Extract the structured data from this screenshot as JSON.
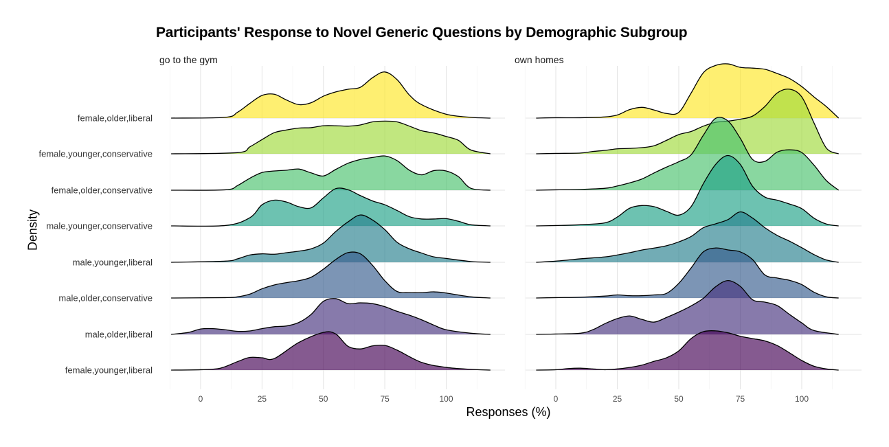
{
  "chart_data": {
    "type": "ridgeline",
    "title": "Participants' Response to Novel Generic Questions by Demographic Subgroup",
    "xlabel": "Responses (%)",
    "ylabel": "Density",
    "xlim": [
      -12,
      118
    ],
    "x_ticks": [
      0,
      25,
      50,
      75,
      100
    ],
    "grid": true,
    "categories": [
      "female,younger,liberal",
      "male,older,liberal",
      "male,older,conservative",
      "male,younger,liberal",
      "male,younger,conservative",
      "female,older,conservative",
      "female,younger,conservative",
      "female,older,liberal"
    ],
    "colors": [
      "#440154",
      "#46337E",
      "#365C8D",
      "#277F8E",
      "#1FA187",
      "#4AC16D",
      "#9FDA3A",
      "#FDE725"
    ],
    "fill_opacity": 0.65,
    "panels": [
      {
        "facet": "go to the gym",
        "series": [
          {
            "name": "female,younger,liberal",
            "x": [
              -12,
              0,
              8,
              15,
              20,
              25,
              30,
              40,
              50,
              55,
              60,
              65,
              70,
              75,
              80,
              90,
              100,
              110,
              118
            ],
            "density": [
              0,
              0.01,
              0.05,
              0.22,
              0.33,
              0.32,
              0.3,
              0.72,
              0.98,
              0.94,
              0.62,
              0.55,
              0.63,
              0.64,
              0.52,
              0.2,
              0.07,
              0.02,
              0
            ]
          },
          {
            "name": "male,older,liberal",
            "x": [
              -12,
              -5,
              0,
              5,
              10,
              15,
              20,
              25,
              30,
              35,
              40,
              45,
              50,
              55,
              60,
              65,
              70,
              75,
              80,
              85,
              90,
              95,
              100,
              110,
              118
            ],
            "density": [
              0,
              0.05,
              0.14,
              0.15,
              0.12,
              0.08,
              0.09,
              0.15,
              0.2,
              0.22,
              0.31,
              0.52,
              0.86,
              0.93,
              0.8,
              0.82,
              0.8,
              0.72,
              0.6,
              0.5,
              0.38,
              0.24,
              0.12,
              0.03,
              0
            ]
          },
          {
            "name": "male,older,conservative",
            "x": [
              -12,
              10,
              15,
              20,
              25,
              30,
              35,
              40,
              45,
              50,
              55,
              60,
              65,
              70,
              75,
              80,
              85,
              90,
              95,
              100,
              110,
              118
            ],
            "density": [
              0,
              0.01,
              0.03,
              0.1,
              0.24,
              0.34,
              0.4,
              0.45,
              0.54,
              0.75,
              1.0,
              1.18,
              1.15,
              0.85,
              0.45,
              0.17,
              0.14,
              0.14,
              0.16,
              0.13,
              0.03,
              0
            ]
          },
          {
            "name": "male,younger,liberal",
            "x": [
              -12,
              10,
              15,
              20,
              25,
              30,
              35,
              40,
              45,
              50,
              55,
              60,
              65,
              70,
              75,
              80,
              85,
              90,
              95,
              100,
              110,
              118
            ],
            "density": [
              0,
              0.03,
              0.09,
              0.19,
              0.22,
              0.21,
              0.25,
              0.29,
              0.35,
              0.5,
              0.8,
              1.05,
              1.23,
              1.1,
              0.85,
              0.52,
              0.35,
              0.24,
              0.14,
              0.1,
              0.02,
              0
            ]
          },
          {
            "name": "male,younger,conservative",
            "x": [
              -12,
              10,
              20,
              25,
              30,
              35,
              40,
              45,
              50,
              55,
              60,
              65,
              70,
              75,
              80,
              85,
              90,
              95,
              100,
              105,
              110,
              118
            ],
            "density": [
              0,
              0.01,
              0.21,
              0.55,
              0.67,
              0.62,
              0.5,
              0.47,
              0.73,
              0.97,
              0.94,
              0.79,
              0.65,
              0.55,
              0.4,
              0.24,
              0.18,
              0.18,
              0.19,
              0.12,
              0.03,
              0
            ]
          },
          {
            "name": "female,older,conservative",
            "x": [
              -12,
              10,
              15,
              20,
              25,
              30,
              35,
              40,
              45,
              50,
              55,
              60,
              65,
              70,
              75,
              80,
              85,
              90,
              95,
              100,
              105,
              110,
              118
            ],
            "density": [
              0,
              0.01,
              0.12,
              0.31,
              0.46,
              0.5,
              0.52,
              0.55,
              0.45,
              0.37,
              0.54,
              0.7,
              0.8,
              0.85,
              0.89,
              0.77,
              0.52,
              0.4,
              0.51,
              0.5,
              0.35,
              0.05,
              0
            ]
          },
          {
            "name": "female,younger,conservative",
            "x": [
              -12,
              15,
              20,
              25,
              30,
              35,
              40,
              45,
              50,
              55,
              60,
              65,
              70,
              75,
              80,
              85,
              90,
              95,
              100,
              105,
              110,
              118
            ],
            "density": [
              0,
              0.03,
              0.18,
              0.37,
              0.55,
              0.62,
              0.67,
              0.68,
              0.73,
              0.73,
              0.72,
              0.75,
              0.83,
              0.85,
              0.83,
              0.72,
              0.6,
              0.54,
              0.45,
              0.35,
              0.1,
              0
            ]
          },
          {
            "name": "female,older,liberal",
            "x": [
              -12,
              10,
              15,
              20,
              25,
              30,
              35,
              40,
              45,
              50,
              55,
              60,
              65,
              70,
              75,
              80,
              85,
              90,
              100,
              110,
              118
            ],
            "density": [
              0,
              0.02,
              0.15,
              0.38,
              0.59,
              0.62,
              0.47,
              0.35,
              0.4,
              0.57,
              0.68,
              0.75,
              0.8,
              1.05,
              1.2,
              1.0,
              0.6,
              0.35,
              0.1,
              0.02,
              0
            ]
          }
        ]
      },
      {
        "facet": "own homes",
        "series": [
          {
            "name": "female,younger,liberal",
            "x": [
              -8,
              0,
              5,
              10,
              15,
              20,
              25,
              30,
              35,
              40,
              45,
              50,
              55,
              60,
              65,
              70,
              75,
              80,
              85,
              90,
              95,
              100,
              105,
              110,
              115
            ],
            "density": [
              0,
              0.01,
              0.04,
              0.05,
              0.03,
              0.01,
              0.03,
              0.07,
              0.13,
              0.23,
              0.32,
              0.5,
              0.82,
              1.0,
              1.02,
              0.97,
              0.88,
              0.82,
              0.76,
              0.64,
              0.45,
              0.25,
              0.1,
              0.03,
              0
            ]
          },
          {
            "name": "male,older,liberal",
            "x": [
              -8,
              0,
              10,
              15,
              20,
              25,
              30,
              35,
              40,
              45,
              50,
              55,
              60,
              65,
              70,
              75,
              80,
              85,
              90,
              95,
              100,
              105,
              115
            ],
            "density": [
              0,
              0.01,
              0.03,
              0.12,
              0.28,
              0.41,
              0.48,
              0.39,
              0.32,
              0.44,
              0.58,
              0.74,
              0.94,
              1.24,
              1.4,
              1.25,
              0.9,
              0.84,
              0.75,
              0.52,
              0.3,
              0.1,
              0
            ]
          },
          {
            "name": "male,older,conservative",
            "x": [
              -8,
              0,
              10,
              20,
              25,
              30,
              35,
              40,
              45,
              50,
              55,
              60,
              65,
              70,
              75,
              80,
              85,
              90,
              95,
              100,
              105,
              110,
              115
            ],
            "density": [
              0,
              0.01,
              0.02,
              0.05,
              0.08,
              0.06,
              0.06,
              0.08,
              0.12,
              0.38,
              0.78,
              1.2,
              1.3,
              1.25,
              1.2,
              1.0,
              0.6,
              0.52,
              0.46,
              0.35,
              0.15,
              0.03,
              0
            ]
          },
          {
            "name": "male,younger,liberal",
            "x": [
              -8,
              0,
              10,
              20,
              25,
              30,
              35,
              40,
              45,
              50,
              55,
              60,
              65,
              70,
              75,
              80,
              85,
              90,
              95,
              100,
              105,
              110,
              115
            ],
            "density": [
              0,
              0.03,
              0.09,
              0.14,
              0.19,
              0.25,
              0.32,
              0.37,
              0.43,
              0.53,
              0.67,
              0.9,
              1.0,
              1.11,
              1.31,
              1.15,
              0.9,
              0.7,
              0.55,
              0.38,
              0.2,
              0.06,
              0
            ]
          },
          {
            "name": "male,younger,conservative",
            "x": [
              -8,
              0,
              10,
              20,
              25,
              30,
              35,
              40,
              45,
              50,
              55,
              60,
              65,
              70,
              75,
              80,
              85,
              90,
              95,
              100,
              105,
              110,
              115
            ],
            "density": [
              0,
              0.01,
              0.03,
              0.08,
              0.23,
              0.46,
              0.53,
              0.5,
              0.38,
              0.28,
              0.5,
              1.1,
              1.6,
              1.83,
              1.6,
              1.03,
              0.75,
              0.67,
              0.57,
              0.45,
              0.2,
              0.05,
              0
            ]
          },
          {
            "name": "female,older,conservative",
            "x": [
              -8,
              0,
              10,
              20,
              25,
              30,
              35,
              40,
              45,
              50,
              55,
              60,
              65,
              70,
              75,
              80,
              85,
              90,
              95,
              100,
              105,
              110,
              115
            ],
            "density": [
              0,
              0.01,
              0.02,
              0.05,
              0.11,
              0.19,
              0.29,
              0.45,
              0.6,
              0.74,
              0.92,
              1.43,
              1.87,
              1.8,
              1.35,
              0.8,
              0.75,
              0.99,
              1.05,
              0.98,
              0.65,
              0.25,
              0
            ]
          },
          {
            "name": "female,younger,conservative",
            "x": [
              -8,
              0,
              10,
              15,
              20,
              25,
              30,
              35,
              40,
              45,
              50,
              55,
              60,
              65,
              70,
              75,
              80,
              85,
              90,
              95,
              100,
              105,
              110,
              115
            ],
            "density": [
              0,
              0.01,
              0.02,
              0.06,
              0.09,
              0.13,
              0.14,
              0.16,
              0.21,
              0.35,
              0.5,
              0.58,
              0.72,
              0.82,
              0.85,
              0.9,
              0.98,
              1.23,
              1.58,
              1.68,
              1.48,
              0.8,
              0.15,
              0
            ]
          },
          {
            "name": "female,older,liberal",
            "x": [
              -8,
              0,
              10,
              20,
              25,
              30,
              35,
              40,
              45,
              50,
              55,
              60,
              65,
              70,
              75,
              80,
              85,
              90,
              95,
              100,
              105,
              110,
              115
            ],
            "density": [
              0,
              0.01,
              0.01,
              0.03,
              0.08,
              0.22,
              0.28,
              0.21,
              0.12,
              0.15,
              0.65,
              1.18,
              1.37,
              1.41,
              1.32,
              1.3,
              1.27,
              1.16,
              1.03,
              0.82,
              0.55,
              0.3,
              0
            ]
          }
        ]
      }
    ]
  }
}
